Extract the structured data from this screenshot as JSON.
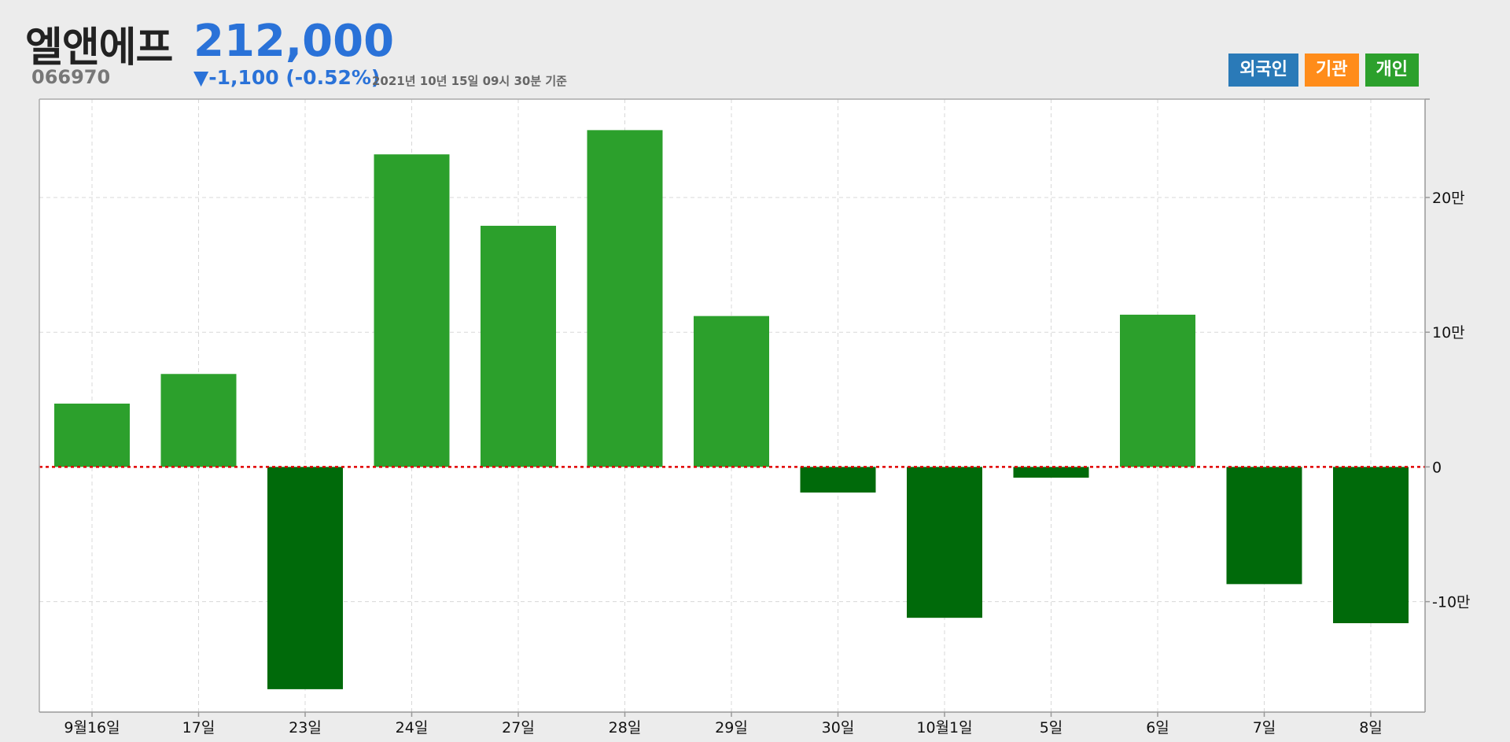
{
  "stock": {
    "name": "엘앤에프",
    "code": "066970",
    "price": "212,000",
    "change": "▼-1,100 (-0.52%)",
    "as_of": "2021년 10년 15일 09시 30분 기준"
  },
  "legend": {
    "items": [
      {
        "label": "외국인",
        "color": "#2a7ab8"
      },
      {
        "label": "기관",
        "color": "#ff8c1a"
      },
      {
        "label": "개인",
        "color": "#2ca02c"
      }
    ]
  },
  "colors": {
    "positive_bar": "#2ca02c",
    "negative_bar": "#006a0a",
    "zero_line": "#e00000",
    "grid": "#d8d8d8"
  },
  "chart_data": {
    "type": "bar",
    "categories": [
      "9월16일",
      "17일",
      "23일",
      "24일",
      "27일",
      "28일",
      "29일",
      "30일",
      "10월1일",
      "5일",
      "6일",
      "7일",
      "8일"
    ],
    "values": [
      47000,
      69000,
      -165000,
      232000,
      179000,
      250000,
      112000,
      -19000,
      -112000,
      -8000,
      113000,
      -87000,
      -116000
    ],
    "ylim": [
      -182000,
      273000
    ],
    "yticks": [
      200000,
      100000,
      0,
      -100000
    ],
    "ytick_labels": [
      "20만",
      "10만",
      "0",
      "-10만"
    ],
    "grid": true,
    "legend_position": "top-right"
  }
}
